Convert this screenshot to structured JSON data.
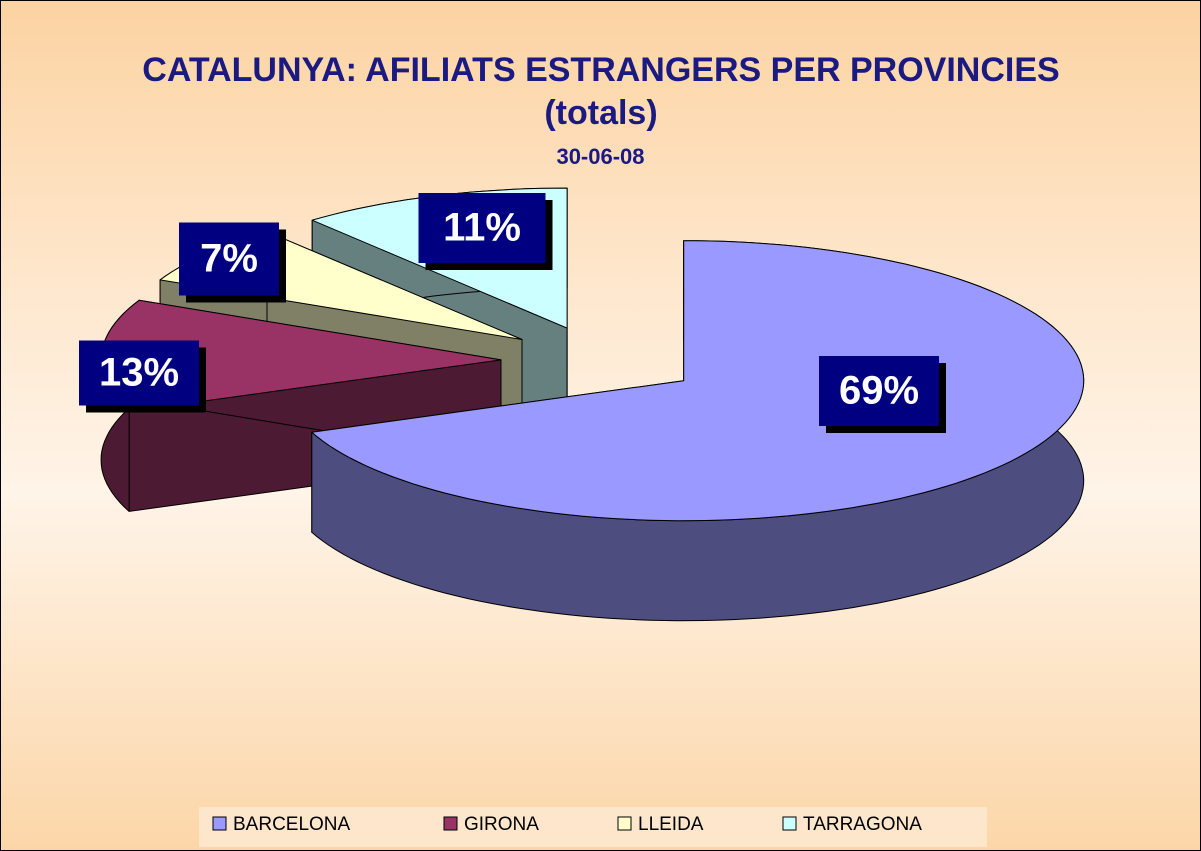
{
  "chart_data": {
    "type": "pie",
    "title": "CATALUNYA: AFILIATS ESTRANGERS PER PROVINCIES (totals)",
    "subtitle": "30-06-08",
    "categories": [
      "BARCELONA",
      "GIRONA",
      "LLEIDA",
      "TARRAGONA"
    ],
    "values": [
      69,
      13,
      7,
      11
    ],
    "value_labels": [
      "69%",
      "13%",
      "7%",
      "11%"
    ],
    "colors": [
      "#9999ff",
      "#993366",
      "#ffffcc",
      "#ccffff"
    ],
    "legend": "bottom"
  }
}
